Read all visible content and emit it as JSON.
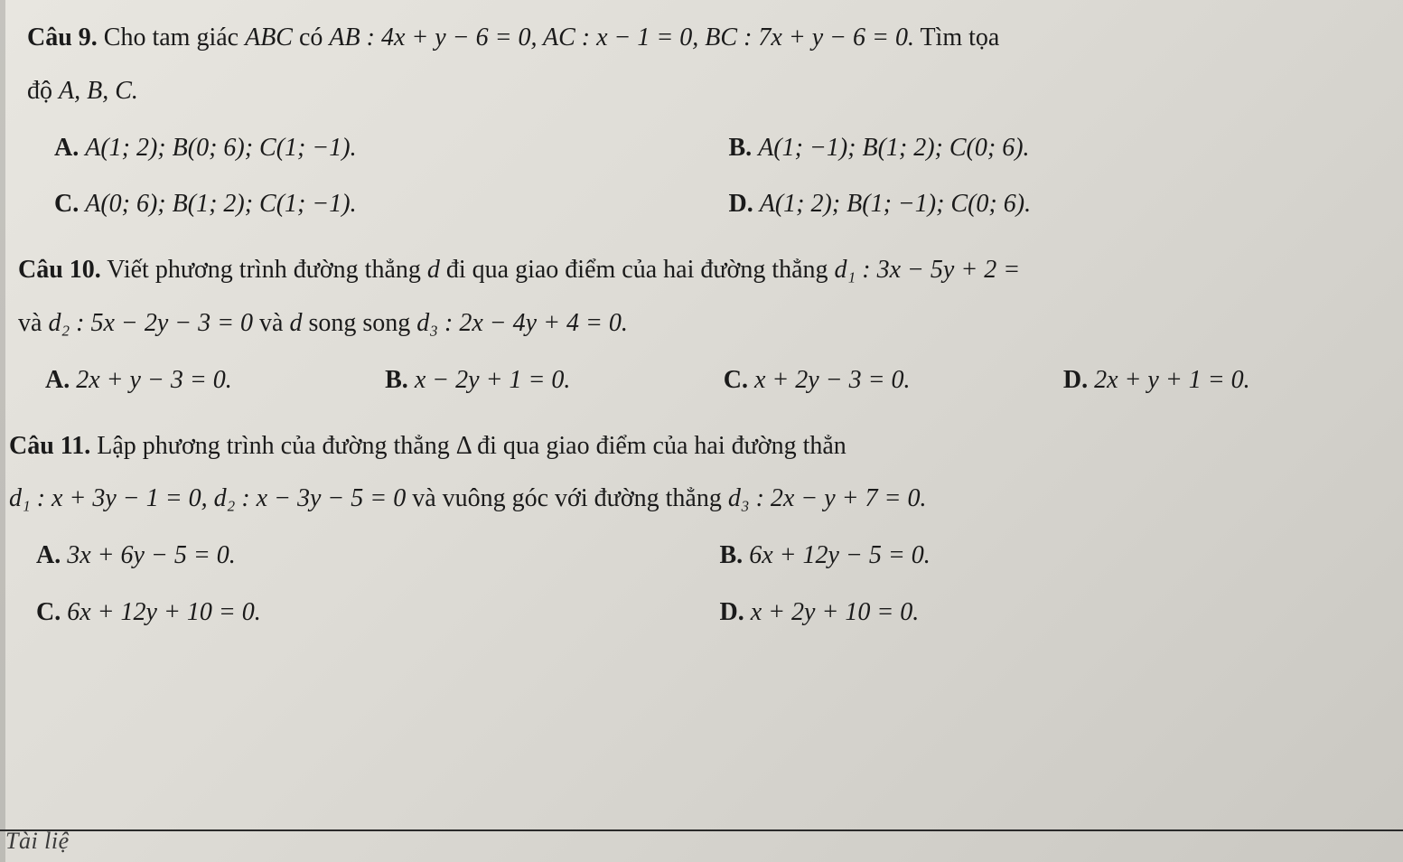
{
  "q9": {
    "label": "Câu 9.",
    "text_a": "Cho tam giác ",
    "text_b": " có ",
    "seg_abc": "ABC",
    "seg_ab": "AB : 4x + y − 6 = 0, AC : x − 1 = 0, BC : 7x + y − 6 = 0.",
    "text_c": " Tìm tọa",
    "line2_a": "độ ",
    "line2_b": "A, B, C.",
    "options": {
      "A": {
        "label": "A.",
        "text": "A(1; 2); B(0; 6); C(1; −1)."
      },
      "B": {
        "label": "B.",
        "text": "A(1; −1); B(1; 2); C(0; 6)."
      },
      "C": {
        "label": "C.",
        "text": "A(0; 6); B(1; 2); C(1; −1)."
      },
      "D": {
        "label": "D.",
        "text": "A(1; 2); B(1; −1); C(0; 6)."
      }
    }
  },
  "q10": {
    "label": "Câu 10.",
    "text_a": "Viết phương trình đường thẳng ",
    "seg_d": "d",
    "text_b": " đi qua giao điểm của hai đường thẳng ",
    "seg_d1": "d₁ : 3x − 5y + 2 =",
    "line2_a": "và ",
    "line2_b": "d₂ : 5x − 2y − 3 = 0",
    "line2_c": " và ",
    "line2_d": "d",
    "line2_e": " song song ",
    "line2_f": "d₃ : 2x − 4y + 4 = 0.",
    "options": {
      "A": {
        "label": "A.",
        "text": "2x + y − 3 = 0."
      },
      "B": {
        "label": "B.",
        "text": "x − 2y + 1 = 0."
      },
      "C": {
        "label": "C.",
        "text": "x + 2y − 3 = 0."
      },
      "D": {
        "label": "D.",
        "text": "2x + y + 1 = 0."
      }
    }
  },
  "q11": {
    "label": "Câu 11.",
    "text_a": "Lập phương trình của đường thẳng Δ đi qua giao điểm của hai đường thẳn",
    "line2": "d₁ : x + 3y − 1 = 0, d₂ : x − 3y − 5 = 0",
    "line2_b": " và vuông góc với đường thẳng ",
    "line2_c": "d₃ : 2x − y + 7 = 0.",
    "options": {
      "A": {
        "label": "A.",
        "text": "3x + 6y − 5 = 0."
      },
      "B": {
        "label": "B.",
        "text": "6x + 12y − 5 = 0."
      },
      "C": {
        "label": "C.",
        "text": "6x + 12y + 10 = 0."
      },
      "D": {
        "label": "D.",
        "text": "x + 2y + 10 = 0."
      }
    }
  },
  "footer": "Tài liệ"
}
